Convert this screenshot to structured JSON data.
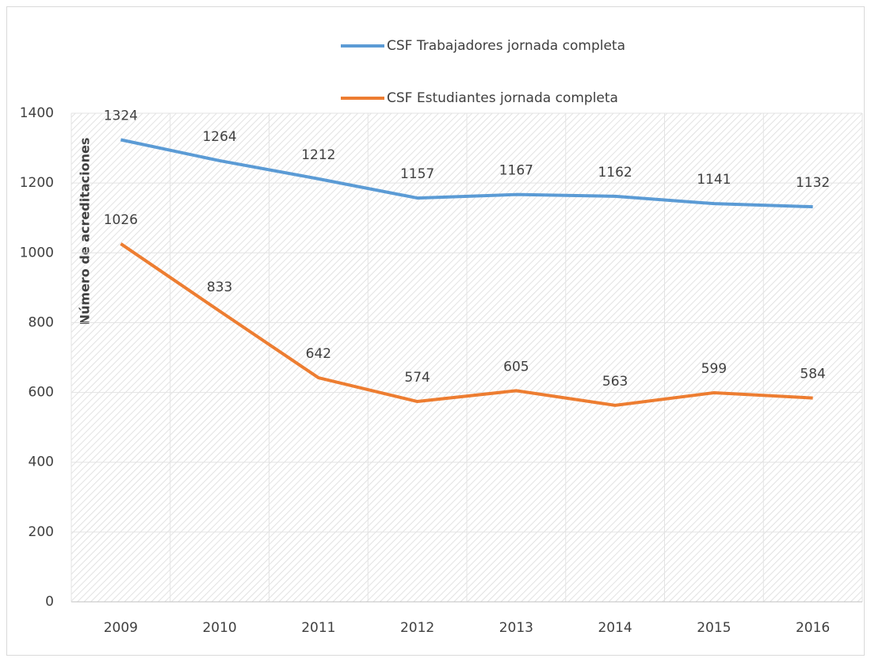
{
  "chart_data": {
    "type": "line",
    "y_label": "Número de acreditaciones",
    "categories": [
      "2009",
      "2010",
      "2011",
      "2012",
      "2013",
      "2014",
      "2015",
      "2016"
    ],
    "series": [
      {
        "name": "CSF Trabajadores jornada completa",
        "color": "#5b9bd5",
        "values": [
          1324,
          1264,
          1212,
          1157,
          1167,
          1162,
          1141,
          1132
        ]
      },
      {
        "name": "CSF Estudiantes jornada completa",
        "color": "#ed7d31",
        "values": [
          1026,
          833,
          642,
          574,
          605,
          563,
          599,
          584
        ]
      }
    ],
    "ylim": [
      0,
      1400
    ],
    "yticks": [
      0,
      200,
      400,
      600,
      800,
      1000,
      1200,
      1400
    ],
    "grid": true,
    "legend": "top"
  }
}
